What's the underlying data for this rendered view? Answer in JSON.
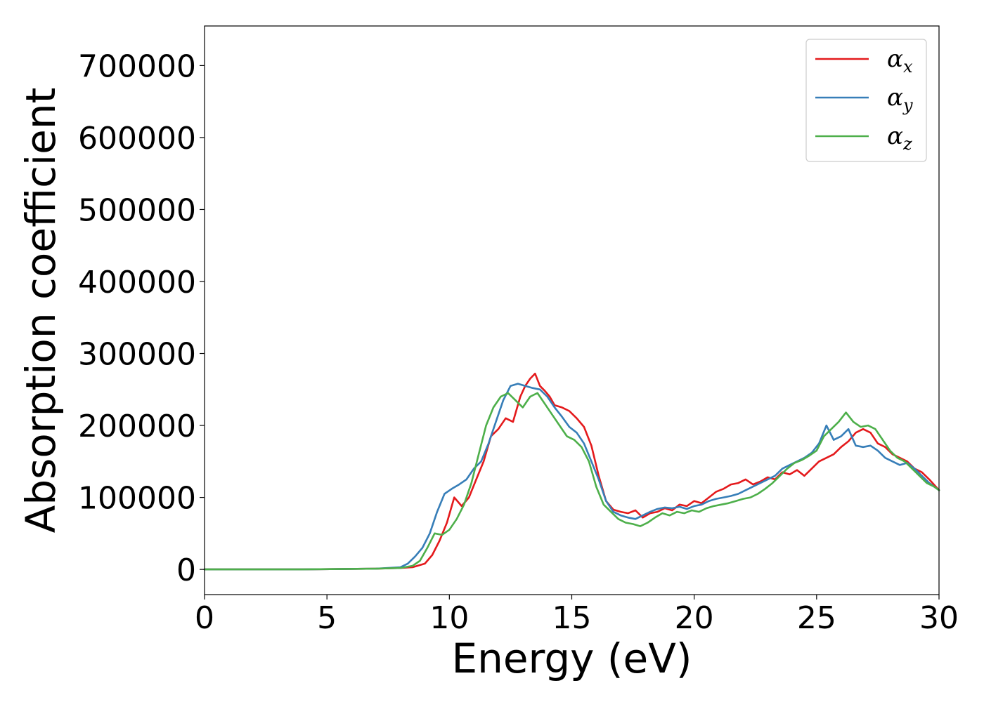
{
  "chart_data": {
    "type": "line",
    "title": "",
    "xlabel": "Energy (eV)",
    "ylabel": "Absorption coefficient",
    "xlim": [
      0,
      30
    ],
    "ylim": [
      -35000,
      755000
    ],
    "xticks": [
      0,
      5,
      10,
      15,
      20,
      25,
      30
    ],
    "yticks": [
      0,
      100000,
      200000,
      300000,
      400000,
      500000,
      600000,
      700000
    ],
    "xtick_labels": [
      "0",
      "5",
      "10",
      "15",
      "20",
      "25",
      "30"
    ],
    "ytick_labels": [
      "0",
      "100000",
      "200000",
      "300000",
      "400000",
      "500000",
      "600000",
      "700000"
    ],
    "grid": false,
    "legend_position": "top-right",
    "series": [
      {
        "name": "αx",
        "base": "α",
        "sub": "x",
        "color": "#e41a1c",
        "x": [
          0,
          4,
          7,
          8,
          8.5,
          9,
          9.3,
          9.6,
          9.9,
          10.2,
          10.5,
          10.8,
          11.1,
          11.4,
          11.7,
          12.0,
          12.3,
          12.6,
          12.9,
          13.1,
          13.3,
          13.5,
          13.7,
          13.9,
          14.1,
          14.3,
          14.6,
          14.9,
          15.2,
          15.5,
          15.8,
          16.1,
          16.4,
          16.7,
          17.0,
          17.3,
          17.6,
          17.9,
          18.2,
          18.5,
          18.8,
          19.1,
          19.4,
          19.7,
          20.0,
          20.3,
          20.6,
          20.9,
          21.2,
          21.5,
          21.8,
          22.1,
          22.4,
          22.7,
          23.0,
          23.3,
          23.6,
          23.9,
          24.2,
          24.5,
          24.8,
          25.1,
          25.4,
          25.7,
          26.0,
          26.3,
          26.6,
          26.9,
          27.2,
          27.5,
          27.8,
          28.1,
          28.4,
          28.7,
          29.0,
          29.3,
          29.6,
          30.0
        ],
        "y": [
          0,
          0,
          1000,
          2000,
          3000,
          8000,
          20000,
          40000,
          65000,
          100000,
          88000,
          100000,
          125000,
          150000,
          185000,
          195000,
          210000,
          205000,
          240000,
          255000,
          265000,
          272000,
          255000,
          248000,
          240000,
          228000,
          225000,
          220000,
          210000,
          198000,
          172000,
          130000,
          95000,
          83000,
          80000,
          78000,
          82000,
          72000,
          78000,
          80000,
          85000,
          82000,
          90000,
          88000,
          95000,
          92000,
          100000,
          108000,
          112000,
          118000,
          120000,
          125000,
          118000,
          122000,
          128000,
          125000,
          135000,
          132000,
          138000,
          130000,
          140000,
          150000,
          155000,
          160000,
          170000,
          178000,
          190000,
          195000,
          190000,
          175000,
          170000,
          160000,
          155000,
          150000,
          140000,
          135000,
          125000,
          110000
        ]
      },
      {
        "name": "αy",
        "base": "α",
        "sub": "y",
        "color": "#377eb8",
        "x": [
          0,
          4,
          7,
          8,
          8.3,
          8.6,
          8.9,
          9.2,
          9.5,
          9.8,
          10.1,
          10.4,
          10.7,
          11.0,
          11.3,
          11.6,
          11.9,
          12.2,
          12.5,
          12.8,
          13.1,
          13.4,
          13.7,
          14.0,
          14.3,
          14.6,
          14.9,
          15.2,
          15.5,
          15.8,
          16.1,
          16.4,
          16.7,
          17.0,
          17.3,
          17.6,
          17.9,
          18.2,
          18.5,
          18.8,
          19.1,
          19.4,
          19.7,
          20.0,
          20.3,
          20.6,
          20.9,
          21.2,
          21.5,
          21.8,
          22.1,
          22.4,
          22.7,
          23.0,
          23.3,
          23.6,
          23.9,
          24.2,
          24.5,
          24.8,
          25.1,
          25.4,
          25.7,
          26.0,
          26.3,
          26.6,
          26.9,
          27.2,
          27.5,
          27.8,
          28.1,
          28.4,
          28.7,
          29.0,
          29.3,
          29.6,
          30.0
        ],
        "y": [
          0,
          0,
          1000,
          3000,
          8000,
          18000,
          30000,
          50000,
          80000,
          105000,
          112000,
          118000,
          125000,
          140000,
          150000,
          175000,
          205000,
          235000,
          255000,
          258000,
          255000,
          252000,
          250000,
          240000,
          225000,
          212000,
          198000,
          190000,
          175000,
          150000,
          125000,
          95000,
          80000,
          75000,
          72000,
          70000,
          75000,
          80000,
          84000,
          86000,
          85000,
          87000,
          84000,
          88000,
          90000,
          95000,
          98000,
          100000,
          102000,
          105000,
          110000,
          115000,
          120000,
          125000,
          130000,
          140000,
          145000,
          150000,
          155000,
          162000,
          175000,
          200000,
          180000,
          185000,
          195000,
          172000,
          170000,
          172000,
          165000,
          155000,
          150000,
          145000,
          148000,
          140000,
          130000,
          120000,
          110000
        ]
      },
      {
        "name": "αz",
        "base": "α",
        "sub": "z",
        "color": "#4daf4a",
        "x": [
          0,
          4,
          7,
          8,
          8.5,
          8.8,
          9.1,
          9.4,
          9.7,
          10.0,
          10.3,
          10.6,
          10.9,
          11.2,
          11.5,
          11.8,
          12.1,
          12.4,
          12.7,
          13.0,
          13.3,
          13.6,
          13.9,
          14.2,
          14.5,
          14.8,
          15.1,
          15.4,
          15.7,
          16.0,
          16.3,
          16.6,
          16.9,
          17.2,
          17.5,
          17.8,
          18.1,
          18.4,
          18.7,
          19.0,
          19.3,
          19.6,
          19.9,
          20.2,
          20.5,
          20.8,
          21.1,
          21.4,
          21.7,
          22.0,
          22.3,
          22.6,
          22.9,
          23.2,
          23.5,
          23.8,
          24.1,
          24.4,
          24.7,
          25.0,
          25.3,
          25.6,
          25.9,
          26.2,
          26.5,
          26.8,
          27.1,
          27.4,
          27.7,
          28.0,
          28.3,
          28.6,
          28.9,
          29.2,
          29.5,
          29.8,
          30.0
        ],
        "y": [
          0,
          0,
          1000,
          2000,
          5000,
          12000,
          30000,
          50000,
          48000,
          55000,
          70000,
          90000,
          120000,
          160000,
          200000,
          225000,
          240000,
          245000,
          235000,
          225000,
          240000,
          245000,
          230000,
          215000,
          200000,
          185000,
          180000,
          170000,
          150000,
          115000,
          90000,
          80000,
          70000,
          65000,
          63000,
          60000,
          65000,
          72000,
          78000,
          75000,
          80000,
          78000,
          82000,
          80000,
          85000,
          88000,
          90000,
          92000,
          95000,
          98000,
          100000,
          105000,
          112000,
          120000,
          130000,
          140000,
          148000,
          152000,
          158000,
          165000,
          185000,
          195000,
          205000,
          218000,
          205000,
          198000,
          200000,
          195000,
          180000,
          165000,
          155000,
          150000,
          140000,
          130000,
          120000,
          115000,
          110000
        ]
      }
    ]
  }
}
